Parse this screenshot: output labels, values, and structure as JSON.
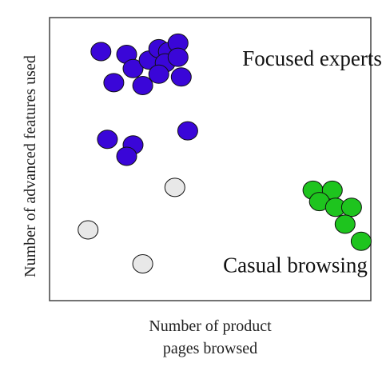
{
  "chart_data": {
    "type": "scatter",
    "title": "",
    "xlabel_lines": [
      "Number of product",
      "pages browsed"
    ],
    "ylabel": "Number of advanced features used",
    "ticks": false,
    "grid": false,
    "xlim": [
      0,
      100
    ],
    "ylim": [
      0,
      100
    ],
    "annotations": [
      {
        "text": "Focused experts",
        "x": 60,
        "y": 83
      },
      {
        "text": "Casual browsing",
        "x": 54,
        "y": 10
      }
    ],
    "series": [
      {
        "color": "#3a06d8",
        "points": [
          {
            "x": 16,
            "y": 88
          },
          {
            "x": 24,
            "y": 87
          },
          {
            "x": 26,
            "y": 82
          },
          {
            "x": 31,
            "y": 85
          },
          {
            "x": 34,
            "y": 89
          },
          {
            "x": 37,
            "y": 88
          },
          {
            "x": 36,
            "y": 84
          },
          {
            "x": 34,
            "y": 80
          },
          {
            "x": 40,
            "y": 91
          },
          {
            "x": 40,
            "y": 86
          },
          {
            "x": 41,
            "y": 79
          },
          {
            "x": 20,
            "y": 77
          },
          {
            "x": 29,
            "y": 76
          },
          {
            "x": 43,
            "y": 60
          },
          {
            "x": 18,
            "y": 57
          },
          {
            "x": 26,
            "y": 55
          },
          {
            "x": 24,
            "y": 51
          }
        ]
      },
      {
        "color": "#e8e8e8",
        "points": [
          {
            "x": 39,
            "y": 40
          },
          {
            "x": 12,
            "y": 25
          },
          {
            "x": 29,
            "y": 13
          }
        ]
      },
      {
        "color": "#1ec41e",
        "points": [
          {
            "x": 82,
            "y": 39
          },
          {
            "x": 88,
            "y": 39
          },
          {
            "x": 84,
            "y": 35
          },
          {
            "x": 89,
            "y": 33
          },
          {
            "x": 94,
            "y": 33
          },
          {
            "x": 92,
            "y": 27
          },
          {
            "x": 97,
            "y": 21
          }
        ]
      }
    ]
  }
}
